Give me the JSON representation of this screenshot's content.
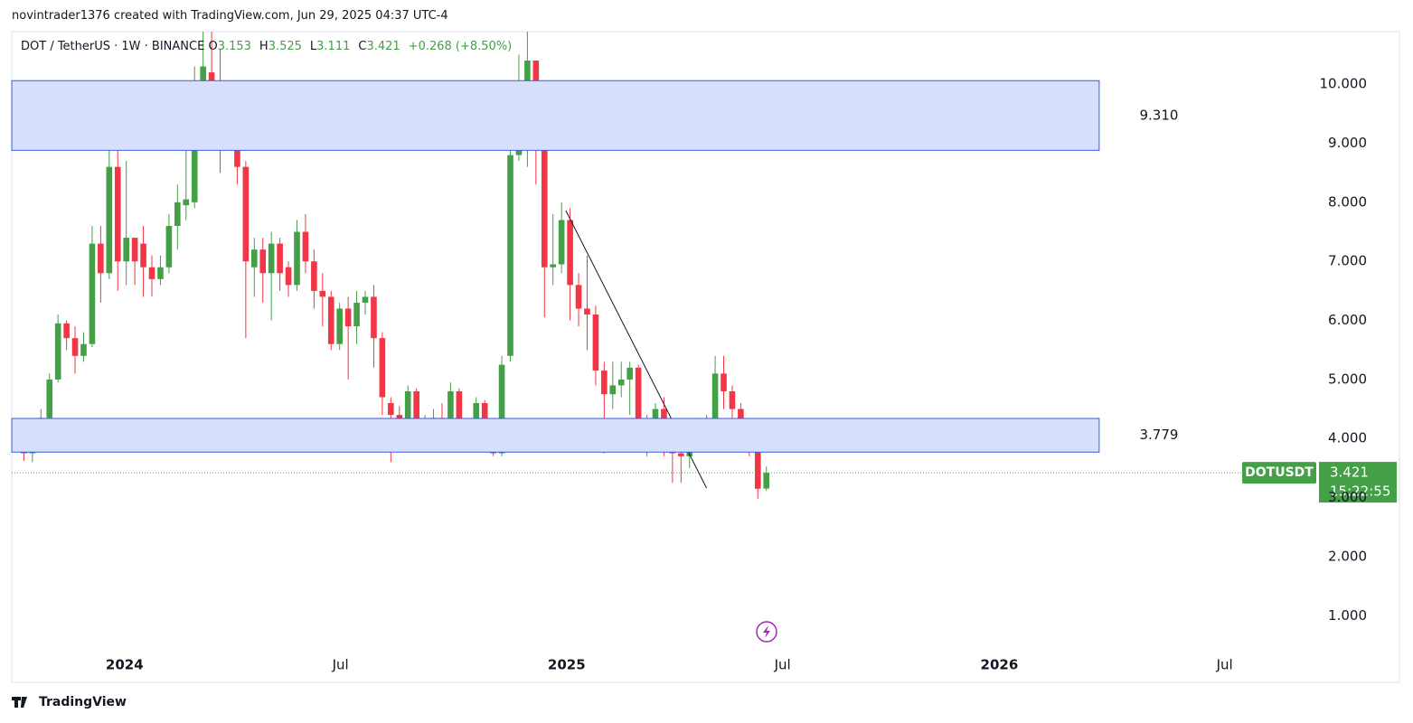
{
  "header": "novintrader1376 created with TradingView.com, Jun 29, 2025 04:37 UTC-4",
  "footer": "TradingView",
  "chart_data": {
    "type": "candlestick",
    "ohlc_labels": [
      "O",
      "H",
      "L",
      "C"
    ],
    "change": "+0.268 (+8.50%)",
    "up_color": "#43a047",
    "down_color": "#f23645",
    "x": [
      0,
      1,
      2,
      3,
      4,
      5,
      6,
      7,
      8,
      9,
      10,
      11,
      12,
      13,
      14,
      15,
      16,
      17,
      18,
      19,
      20,
      21,
      22,
      23,
      24,
      25,
      26,
      27,
      28,
      29,
      30,
      31,
      32,
      33,
      34,
      35,
      36,
      37,
      38,
      39,
      40,
      41,
      42,
      43,
      44,
      45,
      46,
      47,
      48,
      49,
      50,
      51,
      52,
      53,
      54,
      55,
      56,
      57,
      58,
      59,
      60,
      61,
      62,
      63,
      64,
      65,
      66,
      67,
      68,
      69,
      70,
      71,
      72,
      73,
      74,
      75,
      76,
      77,
      78,
      79,
      80,
      81,
      82,
      83,
      84,
      85,
      86,
      87,
      88
    ],
    "series": [
      {
        "name": "DOT / TetherUS · 1W · BINANCE",
        "open": [
          4.25,
          3.97,
          3.75,
          3.95,
          4.35,
          5.0,
          5.95,
          5.7,
          5.4,
          5.6,
          7.3,
          6.8,
          8.6,
          7.0,
          7.4,
          7.3,
          6.9,
          6.7,
          6.9,
          7.6,
          7.95,
          8.0,
          9.7,
          10.2,
          10.0,
          9.3,
          9.5,
          8.6,
          6.9,
          7.2,
          6.8,
          7.3,
          6.9,
          6.6,
          7.5,
          7.0,
          6.5,
          6.4,
          5.6,
          6.2,
          5.9,
          6.3,
          6.4,
          5.7,
          4.6,
          4.4,
          4.3,
          4.8,
          4.1,
          4.3,
          4.35,
          4.2,
          4.8,
          4.15,
          4.1,
          4.6,
          4.1,
          3.75,
          5.4,
          8.8,
          9.3,
          10.4,
          9.0,
          6.9,
          6.95,
          7.7,
          6.6,
          6.2,
          6.1,
          5.15,
          4.75,
          4.9,
          5.0,
          5.2,
          4.0,
          4.3,
          4.5,
          3.9,
          3.75,
          3.7,
          3.9,
          4.1,
          3.9,
          5.1,
          4.8,
          4.5,
          4.1,
          3.9,
          3.153
        ],
        "high": [
          4.32,
          4.0,
          4.0,
          4.5,
          5.1,
          6.1,
          6.0,
          5.9,
          5.8,
          7.6,
          7.6,
          9.15,
          9.5,
          8.7,
          7.3,
          7.6,
          7.1,
          7.1,
          7.8,
          8.3,
          8.9,
          10.3,
          11.5,
          11.3,
          10.6,
          9.6,
          9.6,
          8.7,
          7.4,
          7.4,
          7.5,
          7.4,
          7.0,
          7.7,
          7.8,
          7.2,
          6.8,
          6.5,
          6.3,
          6.4,
          6.5,
          6.5,
          6.6,
          5.8,
          4.7,
          4.55,
          4.9,
          4.85,
          4.4,
          4.5,
          4.6,
          4.95,
          4.85,
          4.3,
          4.7,
          4.65,
          4.15,
          5.4,
          9.0,
          10.5,
          11.1,
          10.4,
          9.15,
          7.8,
          8.0,
          7.9,
          6.8,
          7.1,
          6.25,
          5.3,
          5.3,
          5.3,
          5.3,
          5.25,
          4.4,
          4.6,
          4.7,
          4.2,
          3.8,
          4.0,
          4.35,
          4.4,
          5.4,
          5.4,
          4.9,
          4.6,
          4.3,
          4.3,
          3.525
        ],
        "low": [
          3.9,
          3.62,
          3.6,
          3.9,
          4.3,
          4.95,
          5.5,
          5.1,
          5.3,
          5.55,
          6.3,
          6.7,
          6.5,
          6.6,
          6.6,
          6.4,
          6.4,
          6.6,
          6.8,
          7.2,
          7.7,
          7.9,
          9.5,
          9.4,
          8.5,
          9.2,
          8.3,
          5.7,
          6.4,
          6.3,
          6.0,
          6.5,
          6.4,
          6.5,
          6.8,
          6.2,
          5.9,
          5.5,
          5.5,
          5.0,
          5.6,
          6.1,
          5.2,
          4.4,
          3.6,
          4.1,
          4.1,
          3.9,
          3.8,
          4.1,
          4.05,
          4.0,
          4.0,
          3.95,
          3.95,
          3.8,
          3.7,
          3.7,
          5.3,
          8.7,
          8.6,
          8.3,
          6.05,
          6.6,
          6.8,
          6.0,
          5.9,
          5.5,
          4.9,
          3.75,
          4.5,
          4.7,
          4.4,
          3.9,
          3.7,
          4.2,
          3.7,
          3.25,
          3.25,
          3.5,
          3.8,
          3.8,
          3.85,
          4.5,
          4.3,
          3.9,
          3.7,
          2.98,
          3.111
        ],
        "close": [
          3.97,
          3.75,
          3.95,
          4.35,
          5.0,
          5.95,
          5.7,
          5.4,
          5.6,
          7.3,
          6.8,
          8.6,
          7.0,
          7.4,
          7.0,
          6.9,
          6.7,
          6.9,
          7.6,
          8.0,
          8.05,
          9.7,
          10.3,
          10.0,
          9.3,
          9.5,
          8.6,
          7.0,
          7.2,
          6.8,
          7.3,
          6.8,
          6.6,
          7.5,
          7.0,
          6.5,
          6.4,
          5.6,
          6.2,
          5.9,
          6.3,
          6.4,
          5.7,
          4.7,
          4.4,
          4.3,
          4.8,
          4.1,
          4.3,
          4.35,
          4.2,
          4.8,
          4.1,
          4.1,
          4.6,
          4.1,
          3.75,
          5.25,
          8.8,
          9.3,
          10.4,
          9.0,
          6.9,
          6.95,
          7.7,
          6.6,
          6.2,
          6.1,
          5.15,
          4.75,
          4.9,
          5.0,
          5.2,
          4.0,
          4.3,
          4.5,
          3.8,
          3.75,
          3.7,
          3.9,
          4.1,
          3.9,
          5.1,
          4.8,
          4.5,
          4.1,
          3.9,
          3.15,
          3.421
        ]
      }
    ],
    "xlim": [
      -0.42,
      150.74
    ],
    "xticks": [
      {
        "value": 12.8,
        "label": "2024"
      },
      {
        "value": 38.1,
        "label": "Jul"
      },
      {
        "value": 64.6,
        "label": "2025"
      },
      {
        "value": 89.9,
        "label": "Jul"
      },
      {
        "value": 115.3,
        "label": "2026"
      },
      {
        "value": 141.7,
        "label": "Jul"
      }
    ],
    "ylim": [
      0.53,
      10.89
    ],
    "yticks": [
      {
        "value": 1,
        "label": "1.000"
      },
      {
        "value": 2,
        "label": "2.000"
      },
      {
        "value": 3,
        "label": "3.000"
      },
      {
        "value": 4,
        "label": "4.000"
      },
      {
        "value": 5,
        "label": "5.000"
      },
      {
        "value": 6,
        "label": "6.000"
      },
      {
        "value": 7,
        "label": "7.000"
      },
      {
        "value": 8,
        "label": "8.000"
      },
      {
        "value": 9,
        "label": "9.000"
      },
      {
        "value": 10,
        "label": "10.000"
      }
    ],
    "zones": [
      {
        "label": "9.310",
        "top": 10.06,
        "bottom": 8.88,
        "x_end": 127
      },
      {
        "label": "3.779",
        "top": 4.34,
        "bottom": 3.77,
        "x_end": 127
      }
    ],
    "zone_label_x": 134,
    "trendline": {
      "x": [
        64.5,
        81
      ],
      "y": [
        7.86,
        3.16
      ]
    },
    "price_tag": {
      "symbol": "DOTUSDT",
      "countdown": "15:22:55"
    }
  }
}
